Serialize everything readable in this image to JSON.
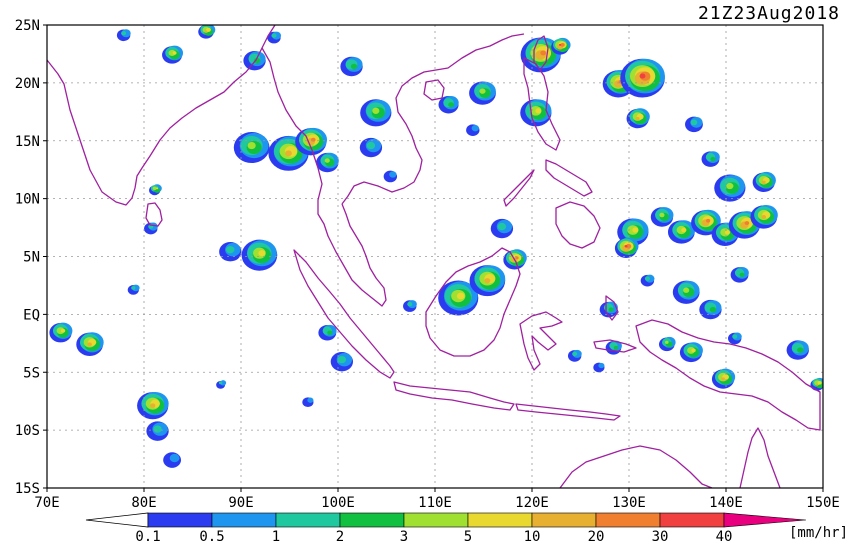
{
  "map": {
    "timestamp": "21Z23Aug2018",
    "units": "[mm/hr]",
    "extent": {
      "lon": [
        70,
        150
      ],
      "lat": [
        -15,
        25
      ]
    },
    "lat_ticks": [
      {
        "value": 25,
        "label": "25N"
      },
      {
        "value": 20,
        "label": "20N"
      },
      {
        "value": 15,
        "label": "15N"
      },
      {
        "value": 10,
        "label": "10N"
      },
      {
        "value": 5,
        "label": "5N"
      },
      {
        "value": 0,
        "label": "EQ"
      },
      {
        "value": -5,
        "label": "5S"
      },
      {
        "value": -10,
        "label": "10S"
      },
      {
        "value": -15,
        "label": "15S"
      }
    ],
    "lon_ticks": [
      {
        "value": 70,
        "label": "70E"
      },
      {
        "value": 80,
        "label": "80E"
      },
      {
        "value": 90,
        "label": "90E"
      },
      {
        "value": 100,
        "label": "100E"
      },
      {
        "value": 110,
        "label": "110E"
      },
      {
        "value": 120,
        "label": "120E"
      },
      {
        "value": 130,
        "label": "130E"
      },
      {
        "value": 140,
        "label": "140E"
      },
      {
        "value": 150,
        "label": "150E"
      }
    ],
    "colorbar": {
      "colors": [
        "#2b3cf0",
        "#1e96f0",
        "#20c8a0",
        "#10c040",
        "#a0e030",
        "#e8d830",
        "#e8b030",
        "#f08030",
        "#f04040",
        "#e8007e"
      ],
      "labels": [
        "0.1",
        "0.5",
        "1",
        "2",
        "3",
        "5",
        "10",
        "20",
        "30",
        "40"
      ]
    },
    "colors": {
      "coastline": "#a020a0",
      "grid": "#9a9a9a"
    },
    "rain_cells": [
      {
        "lon": 71.5,
        "lat": -1.5,
        "r": 1.0,
        "i": 5
      },
      {
        "lon": 74.5,
        "lat": -2.5,
        "r": 1.2,
        "i": 6
      },
      {
        "lon": 78.0,
        "lat": 24.2,
        "r": 0.6,
        "i": 2
      },
      {
        "lon": 79.0,
        "lat": 2.2,
        "r": 0.5,
        "i": 2
      },
      {
        "lon": 81.2,
        "lat": 10.8,
        "r": 0.5,
        "i": 5
      },
      {
        "lon": 80.8,
        "lat": 7.5,
        "r": 0.6,
        "i": 2
      },
      {
        "lon": 81.0,
        "lat": -7.8,
        "r": 1.4,
        "i": 6
      },
      {
        "lon": 81.5,
        "lat": -10.0,
        "r": 1.0,
        "i": 2
      },
      {
        "lon": 83.0,
        "lat": -12.5,
        "r": 0.8,
        "i": 1
      },
      {
        "lon": 88.0,
        "lat": -6.0,
        "r": 0.4,
        "i": 2
      },
      {
        "lon": 83.0,
        "lat": 22.5,
        "r": 0.9,
        "i": 5
      },
      {
        "lon": 86.5,
        "lat": 24.5,
        "r": 0.7,
        "i": 6
      },
      {
        "lon": 91.2,
        "lat": 14.5,
        "r": 1.6,
        "i": 4
      },
      {
        "lon": 95.0,
        "lat": 14.0,
        "r": 1.8,
        "i": 6
      },
      {
        "lon": 97.3,
        "lat": 15.0,
        "r": 1.4,
        "i": 7
      },
      {
        "lon": 99.0,
        "lat": 13.2,
        "r": 1.0,
        "i": 4
      },
      {
        "lon": 92.0,
        "lat": 5.2,
        "r": 1.6,
        "i": 5
      },
      {
        "lon": 89.0,
        "lat": 5.5,
        "r": 1.0,
        "i": 2
      },
      {
        "lon": 91.5,
        "lat": 22.0,
        "r": 1.0,
        "i": 3
      },
      {
        "lon": 93.5,
        "lat": 24.0,
        "r": 0.6,
        "i": 2
      },
      {
        "lon": 101.5,
        "lat": 21.5,
        "r": 1.0,
        "i": 3
      },
      {
        "lon": 104.0,
        "lat": 17.5,
        "r": 1.4,
        "i": 4
      },
      {
        "lon": 103.5,
        "lat": 14.5,
        "r": 1.0,
        "i": 2
      },
      {
        "lon": 105.5,
        "lat": 12.0,
        "r": 0.6,
        "i": 1
      },
      {
        "lon": 99.0,
        "lat": -1.5,
        "r": 0.8,
        "i": 3
      },
      {
        "lon": 100.5,
        "lat": -4.0,
        "r": 1.0,
        "i": 2
      },
      {
        "lon": 97.0,
        "lat": -7.5,
        "r": 0.5,
        "i": 1
      },
      {
        "lon": 107.5,
        "lat": 0.8,
        "r": 0.6,
        "i": 2
      },
      {
        "lon": 112.5,
        "lat": 1.5,
        "r": 1.8,
        "i": 5
      },
      {
        "lon": 115.5,
        "lat": 3.0,
        "r": 1.6,
        "i": 6
      },
      {
        "lon": 118.3,
        "lat": 4.8,
        "r": 1.0,
        "i": 7
      },
      {
        "lon": 117.0,
        "lat": 7.5,
        "r": 1.0,
        "i": 2
      },
      {
        "lon": 121.0,
        "lat": 22.5,
        "r": 1.8,
        "i": 7
      },
      {
        "lon": 123.0,
        "lat": 23.2,
        "r": 0.8,
        "i": 8
      },
      {
        "lon": 120.5,
        "lat": 17.5,
        "r": 1.4,
        "i": 5
      },
      {
        "lon": 115.0,
        "lat": 19.2,
        "r": 1.2,
        "i": 4
      },
      {
        "lon": 111.5,
        "lat": 18.2,
        "r": 0.9,
        "i": 3
      },
      {
        "lon": 114.0,
        "lat": 16.0,
        "r": 0.6,
        "i": 1
      },
      {
        "lon": 129.0,
        "lat": 20.0,
        "r": 1.4,
        "i": 7
      },
      {
        "lon": 131.5,
        "lat": 20.5,
        "r": 2.0,
        "i": 8
      },
      {
        "lon": 131.0,
        "lat": 17.0,
        "r": 1.0,
        "i": 6
      },
      {
        "lon": 136.8,
        "lat": 16.5,
        "r": 0.8,
        "i": 2
      },
      {
        "lon": 138.5,
        "lat": 13.5,
        "r": 0.8,
        "i": 3
      },
      {
        "lon": 140.5,
        "lat": 11.0,
        "r": 1.4,
        "i": 4
      },
      {
        "lon": 144.0,
        "lat": 11.5,
        "r": 1.0,
        "i": 6
      },
      {
        "lon": 130.5,
        "lat": 7.2,
        "r": 1.4,
        "i": 5
      },
      {
        "lon": 129.8,
        "lat": 5.8,
        "r": 1.0,
        "i": 8
      },
      {
        "lon": 133.5,
        "lat": 8.5,
        "r": 1.0,
        "i": 4
      },
      {
        "lon": 135.5,
        "lat": 7.2,
        "r": 1.2,
        "i": 5
      },
      {
        "lon": 138.0,
        "lat": 8.0,
        "r": 1.3,
        "i": 7
      },
      {
        "lon": 140.0,
        "lat": 7.0,
        "r": 1.2,
        "i": 5
      },
      {
        "lon": 142.0,
        "lat": 7.8,
        "r": 1.4,
        "i": 7
      },
      {
        "lon": 144.0,
        "lat": 8.5,
        "r": 1.2,
        "i": 6
      },
      {
        "lon": 141.5,
        "lat": 3.5,
        "r": 0.8,
        "i": 3
      },
      {
        "lon": 136.0,
        "lat": 2.0,
        "r": 1.2,
        "i": 4
      },
      {
        "lon": 138.5,
        "lat": 0.5,
        "r": 1.0,
        "i": 3
      },
      {
        "lon": 132.0,
        "lat": 3.0,
        "r": 0.6,
        "i": 2
      },
      {
        "lon": 128.0,
        "lat": 0.5,
        "r": 0.8,
        "i": 3
      },
      {
        "lon": 128.5,
        "lat": -2.8,
        "r": 0.7,
        "i": 3
      },
      {
        "lon": 134.0,
        "lat": -2.5,
        "r": 0.7,
        "i": 4
      },
      {
        "lon": 136.5,
        "lat": -3.2,
        "r": 1.0,
        "i": 5
      },
      {
        "lon": 139.8,
        "lat": -5.5,
        "r": 1.0,
        "i": 6
      },
      {
        "lon": 141.0,
        "lat": -2.0,
        "r": 0.6,
        "i": 2
      },
      {
        "lon": 147.5,
        "lat": -3.0,
        "r": 1.0,
        "i": 3
      },
      {
        "lon": 149.5,
        "lat": -6.0,
        "r": 0.6,
        "i": 6
      },
      {
        "lon": 124.5,
        "lat": -3.5,
        "r": 0.6,
        "i": 2
      },
      {
        "lon": 127.0,
        "lat": -4.5,
        "r": 0.5,
        "i": 1
      }
    ]
  }
}
